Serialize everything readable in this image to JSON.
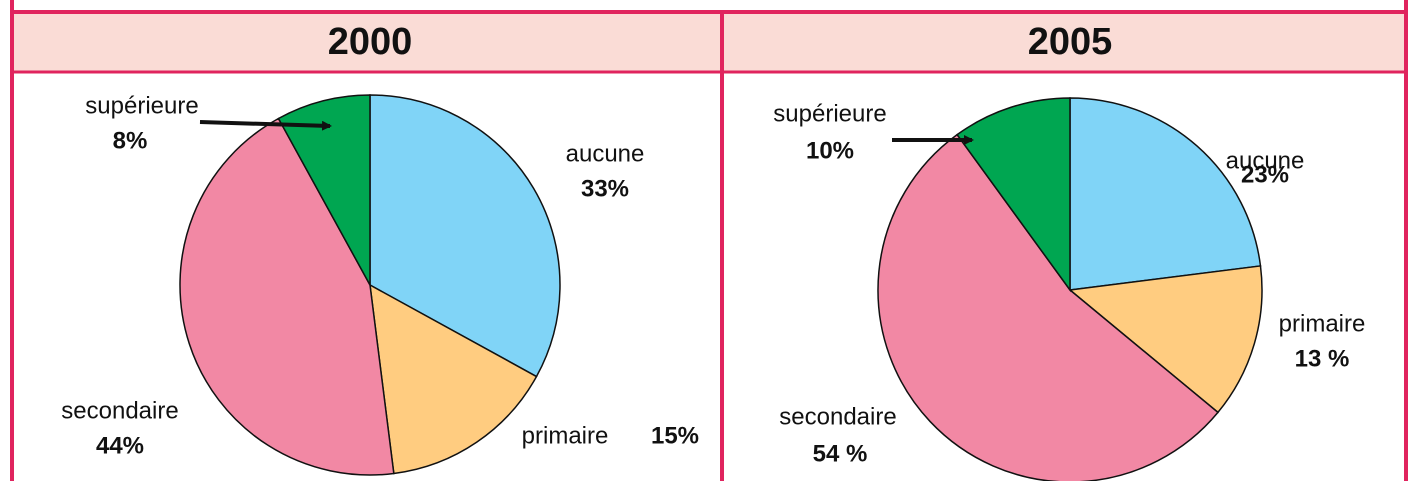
{
  "chart_data": [
    {
      "type": "pie",
      "title": "2000",
      "categories": [
        "aucune",
        "primaire",
        "secondaire",
        "supérieure"
      ],
      "values": [
        33,
        15,
        44,
        8
      ],
      "value_labels": [
        "33%",
        "15%",
        "44%",
        "8%"
      ],
      "colors": [
        "#80d4f7",
        "#ffcc80",
        "#f288a4",
        "#00a651"
      ]
    },
    {
      "type": "pie",
      "title": "2005",
      "categories": [
        "aucune",
        "primaire",
        "secondaire",
        "supérieure"
      ],
      "values": [
        23,
        13,
        54,
        10
      ],
      "value_labels": [
        "23%",
        "13 %",
        "54 %",
        "10%"
      ],
      "colors": [
        "#80d4f7",
        "#ffcc80",
        "#f288a4",
        "#00a651"
      ]
    }
  ]
}
